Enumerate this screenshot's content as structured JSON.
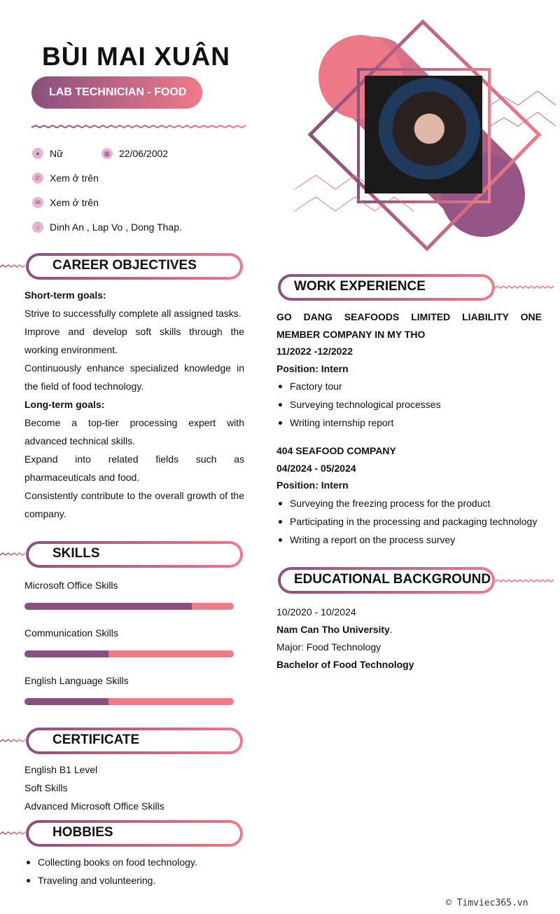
{
  "header": {
    "name": "BÙI MAI XUÂN",
    "role": "LAB TECHNICIAN - FOOD"
  },
  "contact": {
    "gender": "Nữ",
    "birthday": "22/06/2002",
    "phone": "Xem ở trên",
    "email": "Xem ở trên",
    "address": "Dinh An , Lap Vo , Dong Thap."
  },
  "colors": {
    "primary": "#8a5080",
    "accent": "#f07a88"
  },
  "career": {
    "title": "CAREER OBJECTIVES",
    "short_label": "Short-term goals:",
    "short": [
      "Strive to successfully complete all assigned tasks.",
      "Improve and develop soft skills through the working environment.",
      "Continuously enhance specialized knowledge in the field of food technology."
    ],
    "long_label": "Long-term goals:",
    "long": [
      "Become a top-tier processing expert with advanced technical skills.",
      "Expand into related fields such as pharmaceuticals and food.",
      "Consistently contribute to the overall growth of the company."
    ]
  },
  "skills": {
    "title": "SKILLS",
    "items": [
      {
        "name": "Microsoft Office Skills",
        "level": 80
      },
      {
        "name": "Communication Skills",
        "level": 40
      },
      {
        "name": "English Language Skills",
        "level": 40
      }
    ]
  },
  "certificate": {
    "title": "CERTIFICATE",
    "items": [
      "English B1 Level",
      "Soft Skills",
      "Advanced Microsoft Office Skills"
    ]
  },
  "hobbies": {
    "title": "HOBBIES",
    "items": [
      "Collecting books on food technology.",
      "Traveling and volunteering."
    ]
  },
  "work": {
    "title": "WORK EXPERIENCE",
    "jobs": [
      {
        "company": "GO DANG SEAFOODS LIMITED LIABILITY ONE MEMBER COMPANY IN MY THO",
        "period": "11/2022 -12/2022",
        "position": "Position: Intern",
        "tasks": [
          "Factory tour",
          "Surveying technological processes",
          "Writing internship report"
        ]
      },
      {
        "company": "404 SEAFOOD COMPANY",
        "period": "04/2024 - 05/2024",
        "position": "Position: Intern",
        "tasks": [
          "Surveying the freezing process for the product",
          "Participating in the processing and packaging technology",
          "Writing a report on the process survey"
        ]
      }
    ]
  },
  "education": {
    "title": "EDUCATIONAL BACKGROUND",
    "period": "10/2020 - 10/2024",
    "school": "Nam Can Tho University",
    "school_suffix": ".",
    "major": "Major: Food Technology",
    "degree": "Bachelor of Food Technology"
  },
  "footer": {
    "watermark": "© Timviec365.vn"
  }
}
